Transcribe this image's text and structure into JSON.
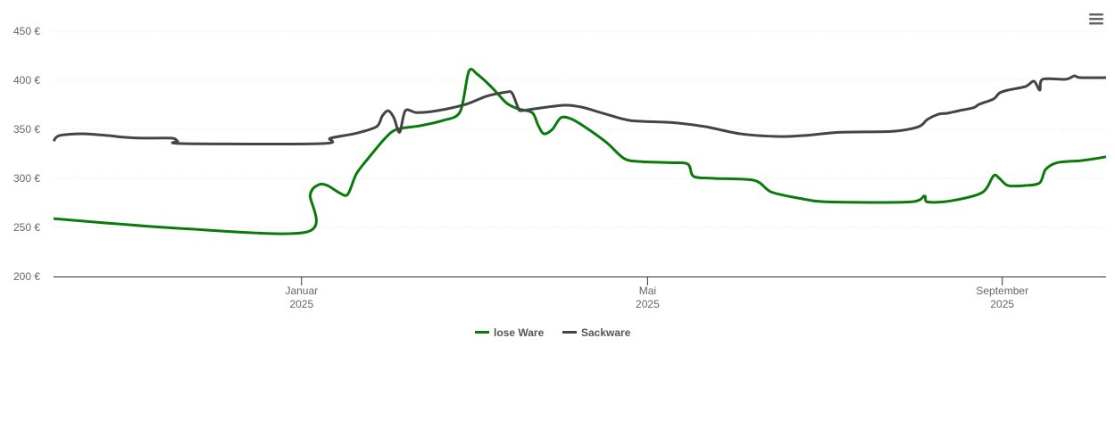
{
  "chart_data": {
    "type": "line",
    "title": "",
    "xlabel": "",
    "ylabel": "",
    "x_unit": "days since 2025-01-01",
    "xlim": [
      -86,
      279
    ],
    "ylim": [
      200,
      450
    ],
    "y_ticks": [
      200,
      250,
      300,
      350,
      400,
      450
    ],
    "y_tick_labels": [
      "200 €",
      "250 €",
      "300 €",
      "350 €",
      "400 €",
      "450 €"
    ],
    "x_ticks": [
      {
        "x": 0,
        "label": "Januar",
        "year": "2025"
      },
      {
        "x": 120,
        "label": "Mai",
        "year": "2025"
      },
      {
        "x": 243,
        "label": "September",
        "year": "2025"
      }
    ],
    "grid": true,
    "legend_position": "bottom-center",
    "series": [
      {
        "name": "lose Ware",
        "color": "#0a7a0a",
        "points": [
          [
            -86,
            259
          ],
          [
            -42,
            249
          ],
          [
            2,
            245.5
          ],
          [
            3,
            283.6
          ],
          [
            6,
            293.6
          ],
          [
            9,
            292.7
          ],
          [
            13,
            285.5
          ],
          [
            16,
            283.6
          ],
          [
            19,
            304.5
          ],
          [
            23,
            320
          ],
          [
            29,
            341
          ],
          [
            33,
            350
          ],
          [
            41,
            353.6
          ],
          [
            49,
            359
          ],
          [
            55,
            368
          ],
          [
            58,
            409
          ],
          [
            61,
            406
          ],
          [
            66,
            392.7
          ],
          [
            71,
            377
          ],
          [
            75,
            371
          ],
          [
            80,
            367
          ],
          [
            82,
            354.5
          ],
          [
            84,
            345.5
          ],
          [
            87,
            350
          ],
          [
            90,
            362
          ],
          [
            94,
            360
          ],
          [
            100,
            349
          ],
          [
            106,
            336
          ],
          [
            112,
            320
          ],
          [
            118,
            317
          ],
          [
            128,
            316
          ],
          [
            134,
            314.5
          ],
          [
            136,
            302
          ],
          [
            143,
            300
          ],
          [
            157,
            298
          ],
          [
            163,
            286
          ],
          [
            174,
            279
          ],
          [
            183,
            276
          ],
          [
            211,
            276
          ],
          [
            216,
            282
          ],
          [
            217,
            276
          ],
          [
            225,
            277
          ],
          [
            236,
            285.5
          ],
          [
            240,
            302.7
          ],
          [
            242,
            300
          ],
          [
            245,
            292.7
          ],
          [
            251,
            292.7
          ],
          [
            256,
            295.5
          ],
          [
            258,
            309
          ],
          [
            262,
            316
          ],
          [
            270,
            318
          ],
          [
            275,
            320
          ],
          [
            279,
            322
          ]
        ]
      },
      {
        "name": "Sackware",
        "color": "#444444",
        "points": [
          [
            -86,
            338
          ],
          [
            -84,
            343.6
          ],
          [
            -76,
            345.5
          ],
          [
            -67,
            343.6
          ],
          [
            -61,
            341.8
          ],
          [
            -55,
            341
          ],
          [
            -45,
            341
          ],
          [
            -43,
            338
          ],
          [
            -41,
            335.5
          ],
          [
            7,
            335.5
          ],
          [
            10,
            341
          ],
          [
            19,
            346
          ],
          [
            26,
            352.7
          ],
          [
            28,
            363.6
          ],
          [
            30,
            369
          ],
          [
            32,
            362
          ],
          [
            34,
            347
          ],
          [
            36,
            369
          ],
          [
            40,
            367
          ],
          [
            47,
            369
          ],
          [
            57,
            375.5
          ],
          [
            64,
            383.6
          ],
          [
            71,
            388
          ],
          [
            73,
            387
          ],
          [
            75,
            372.7
          ],
          [
            76,
            369
          ],
          [
            81,
            371
          ],
          [
            91,
            374.5
          ],
          [
            97,
            372.7
          ],
          [
            105,
            366
          ],
          [
            114,
            359
          ],
          [
            128,
            357
          ],
          [
            140,
            352.7
          ],
          [
            152,
            345.5
          ],
          [
            165,
            342.7
          ],
          [
            174,
            343.6
          ],
          [
            187,
            347
          ],
          [
            205,
            348
          ],
          [
            214,
            352.7
          ],
          [
            217,
            360
          ],
          [
            221,
            365.5
          ],
          [
            224,
            366.4
          ],
          [
            228,
            369
          ],
          [
            233,
            372
          ],
          [
            235,
            375.5
          ],
          [
            240,
            381
          ],
          [
            242,
            387
          ],
          [
            245,
            390
          ],
          [
            251,
            393.6
          ],
          [
            254,
            399
          ],
          [
            256,
            390
          ],
          [
            257,
            401
          ],
          [
            265,
            401
          ],
          [
            268,
            404.5
          ],
          [
            270,
            402.7
          ],
          [
            279,
            402.7
          ]
        ]
      }
    ]
  },
  "menu_icon": "hamburger-menu-icon"
}
